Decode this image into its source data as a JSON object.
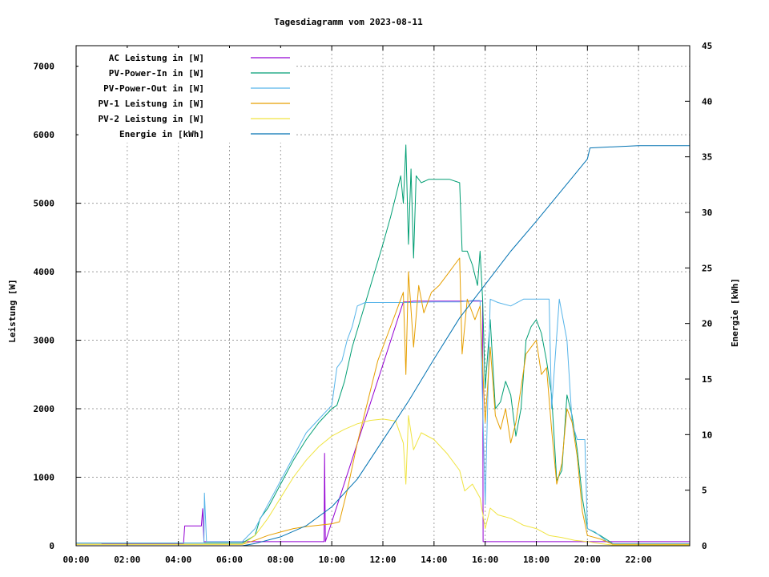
{
  "chart_data": {
    "type": "line",
    "title": "Tagesdiagramm vom 2023-08-11",
    "ylabel": "Leistung [W]",
    "y2label": "Energie [kWh]",
    "xlim": [
      0,
      24
    ],
    "ylim": [
      0,
      7300
    ],
    "y2lim": [
      0,
      45
    ],
    "grid": true,
    "legend_position": "top-left",
    "x_ticks": [
      {
        "v": 0,
        "label": "00:00"
      },
      {
        "v": 2,
        "label": "02:00"
      },
      {
        "v": 4,
        "label": "04:00"
      },
      {
        "v": 6,
        "label": "06:00"
      },
      {
        "v": 8,
        "label": "08:00"
      },
      {
        "v": 10,
        "label": "10:00"
      },
      {
        "v": 12,
        "label": "12:00"
      },
      {
        "v": 14,
        "label": "14:00"
      },
      {
        "v": 16,
        "label": "16:00"
      },
      {
        "v": 18,
        "label": "18:00"
      },
      {
        "v": 20,
        "label": "20:00"
      },
      {
        "v": 22,
        "label": "22:00"
      }
    ],
    "y_ticks": [
      0,
      1000,
      2000,
      3000,
      4000,
      5000,
      6000,
      7000
    ],
    "y2_ticks": [
      0,
      5,
      10,
      15,
      20,
      25,
      30,
      35,
      40,
      45
    ],
    "series": [
      {
        "name": "AC Leistung in [W]",
        "color": "#9400d3",
        "axis": "y1",
        "points": [
          [
            0,
            40
          ],
          [
            1.0,
            40
          ],
          [
            1.01,
            30
          ],
          [
            4.2,
            30
          ],
          [
            4.25,
            290
          ],
          [
            4.9,
            290
          ],
          [
            4.95,
            540
          ],
          [
            5.0,
            60
          ],
          [
            9.7,
            60
          ],
          [
            9.72,
            1350
          ],
          [
            9.75,
            60
          ],
          [
            12.8,
            3560
          ],
          [
            13.0,
            3560
          ],
          [
            13.2,
            3570
          ],
          [
            15.9,
            3570
          ],
          [
            15.92,
            60
          ],
          [
            24,
            60
          ]
        ]
      },
      {
        "name": "PV-Power-In in [W]",
        "color": "#009e73",
        "axis": "y1",
        "points": [
          [
            0,
            40
          ],
          [
            5.0,
            40
          ],
          [
            5.05,
            40
          ],
          [
            6.5,
            40
          ],
          [
            7.0,
            150
          ],
          [
            7.2,
            400
          ],
          [
            7.5,
            550
          ],
          [
            8.0,
            900
          ],
          [
            8.5,
            1250
          ],
          [
            9.0,
            1550
          ],
          [
            9.5,
            1800
          ],
          [
            10.0,
            2000
          ],
          [
            10.2,
            2050
          ],
          [
            10.5,
            2400
          ],
          [
            10.8,
            2900
          ],
          [
            11.2,
            3400
          ],
          [
            11.6,
            3900
          ],
          [
            12.0,
            4400
          ],
          [
            12.3,
            4800
          ],
          [
            12.5,
            5100
          ],
          [
            12.7,
            5400
          ],
          [
            12.8,
            5000
          ],
          [
            12.9,
            5850
          ],
          [
            13.0,
            4400
          ],
          [
            13.1,
            5500
          ],
          [
            13.2,
            4200
          ],
          [
            13.3,
            5400
          ],
          [
            13.5,
            5300
          ],
          [
            13.8,
            5350
          ],
          [
            14.2,
            5350
          ],
          [
            14.6,
            5350
          ],
          [
            15.0,
            5300
          ],
          [
            15.1,
            4300
          ],
          [
            15.3,
            4300
          ],
          [
            15.5,
            4100
          ],
          [
            15.7,
            3800
          ],
          [
            15.8,
            4300
          ],
          [
            15.9,
            3600
          ],
          [
            16.0,
            2300
          ],
          [
            16.2,
            3300
          ],
          [
            16.4,
            2000
          ],
          [
            16.6,
            2100
          ],
          [
            16.8,
            2400
          ],
          [
            17.0,
            2200
          ],
          [
            17.2,
            1600
          ],
          [
            17.4,
            2000
          ],
          [
            17.6,
            3000
          ],
          [
            17.8,
            3200
          ],
          [
            18.0,
            3300
          ],
          [
            18.2,
            3100
          ],
          [
            18.4,
            2700
          ],
          [
            18.6,
            2200
          ],
          [
            18.8,
            950
          ],
          [
            19.0,
            1100
          ],
          [
            19.2,
            2200
          ],
          [
            19.4,
            1900
          ],
          [
            19.6,
            1400
          ],
          [
            19.8,
            700
          ],
          [
            20.0,
            250
          ],
          [
            20.5,
            150
          ],
          [
            21.0,
            30
          ],
          [
            24,
            30
          ]
        ]
      },
      {
        "name": "PV-Power-Out in [W]",
        "color": "#56b4e9",
        "axis": "y1",
        "points": [
          [
            0,
            40
          ],
          [
            5.0,
            40
          ],
          [
            5.02,
            770
          ],
          [
            5.1,
            60
          ],
          [
            6.5,
            60
          ],
          [
            7.0,
            250
          ],
          [
            7.5,
            600
          ],
          [
            8.0,
            950
          ],
          [
            8.5,
            1300
          ],
          [
            9.0,
            1650
          ],
          [
            9.5,
            1850
          ],
          [
            10.0,
            2050
          ],
          [
            10.2,
            2600
          ],
          [
            10.4,
            2700
          ],
          [
            10.6,
            3000
          ],
          [
            10.8,
            3200
          ],
          [
            11.0,
            3500
          ],
          [
            11.3,
            3550
          ],
          [
            12.0,
            3550
          ],
          [
            13.0,
            3550
          ],
          [
            14.0,
            3560
          ],
          [
            15.0,
            3560
          ],
          [
            15.5,
            3580
          ],
          [
            15.8,
            3580
          ],
          [
            16.0,
            600
          ],
          [
            16.2,
            3600
          ],
          [
            16.5,
            3550
          ],
          [
            17.0,
            3500
          ],
          [
            17.5,
            3600
          ],
          [
            18.0,
            3600
          ],
          [
            18.5,
            3600
          ],
          [
            18.6,
            2000
          ],
          [
            18.9,
            3600
          ],
          [
            19.2,
            3000
          ],
          [
            19.4,
            1800
          ],
          [
            19.6,
            1550
          ],
          [
            19.9,
            1550
          ],
          [
            20.0,
            250
          ],
          [
            20.3,
            200
          ],
          [
            20.8,
            50
          ],
          [
            21.0,
            30
          ],
          [
            24,
            30
          ]
        ]
      },
      {
        "name": "PV-1 Leistung in [W]",
        "color": "#e69f00",
        "axis": "y1",
        "points": [
          [
            0,
            20
          ],
          [
            6.5,
            20
          ],
          [
            7.0,
            80
          ],
          [
            7.5,
            150
          ],
          [
            8.0,
            200
          ],
          [
            8.5,
            250
          ],
          [
            9.0,
            280
          ],
          [
            9.5,
            300
          ],
          [
            10.0,
            320
          ],
          [
            10.3,
            350
          ],
          [
            10.6,
            800
          ],
          [
            11.0,
            1500
          ],
          [
            11.4,
            2100
          ],
          [
            11.8,
            2700
          ],
          [
            12.2,
            3100
          ],
          [
            12.5,
            3400
          ],
          [
            12.8,
            3700
          ],
          [
            12.9,
            2500
          ],
          [
            13.0,
            4000
          ],
          [
            13.2,
            2900
          ],
          [
            13.4,
            3800
          ],
          [
            13.6,
            3400
          ],
          [
            13.9,
            3700
          ],
          [
            14.2,
            3800
          ],
          [
            14.5,
            3950
          ],
          [
            14.8,
            4100
          ],
          [
            15.0,
            4200
          ],
          [
            15.1,
            2800
          ],
          [
            15.3,
            3600
          ],
          [
            15.6,
            3300
          ],
          [
            15.8,
            3500
          ],
          [
            16.0,
            1800
          ],
          [
            16.2,
            2900
          ],
          [
            16.4,
            1900
          ],
          [
            16.6,
            1700
          ],
          [
            16.8,
            2000
          ],
          [
            17.0,
            1500
          ],
          [
            17.2,
            1800
          ],
          [
            17.4,
            2300
          ],
          [
            17.6,
            2800
          ],
          [
            17.8,
            2900
          ],
          [
            18.0,
            3000
          ],
          [
            18.2,
            2500
          ],
          [
            18.4,
            2600
          ],
          [
            18.6,
            1700
          ],
          [
            18.8,
            900
          ],
          [
            19.0,
            1200
          ],
          [
            19.2,
            2000
          ],
          [
            19.4,
            1800
          ],
          [
            19.6,
            1300
          ],
          [
            19.8,
            500
          ],
          [
            20.0,
            150
          ],
          [
            20.5,
            100
          ],
          [
            21.0,
            20
          ],
          [
            24,
            20
          ]
        ]
      },
      {
        "name": "PV-2 Leistung in [W]",
        "color": "#f0e442",
        "axis": "y1",
        "points": [
          [
            0,
            20
          ],
          [
            6.5,
            20
          ],
          [
            7.0,
            150
          ],
          [
            7.5,
            400
          ],
          [
            8.0,
            700
          ],
          [
            8.5,
            1000
          ],
          [
            9.0,
            1250
          ],
          [
            9.5,
            1450
          ],
          [
            10.0,
            1600
          ],
          [
            10.5,
            1700
          ],
          [
            11.0,
            1780
          ],
          [
            11.5,
            1830
          ],
          [
            12.0,
            1850
          ],
          [
            12.5,
            1820
          ],
          [
            12.8,
            1500
          ],
          [
            12.9,
            900
          ],
          [
            13.0,
            1900
          ],
          [
            13.2,
            1400
          ],
          [
            13.5,
            1650
          ],
          [
            14.0,
            1550
          ],
          [
            14.5,
            1350
          ],
          [
            15.0,
            1100
          ],
          [
            15.2,
            800
          ],
          [
            15.5,
            900
          ],
          [
            15.8,
            700
          ],
          [
            16.0,
            250
          ],
          [
            16.2,
            550
          ],
          [
            16.5,
            450
          ],
          [
            17.0,
            400
          ],
          [
            17.5,
            300
          ],
          [
            18.0,
            250
          ],
          [
            18.5,
            150
          ],
          [
            19.0,
            120
          ],
          [
            19.5,
            80
          ],
          [
            20.0,
            60
          ],
          [
            20.5,
            30
          ],
          [
            21.0,
            10
          ],
          [
            24,
            10
          ]
        ]
      },
      {
        "name": "Energie in [kWh]",
        "color": "#0072b2",
        "axis": "y2",
        "points": [
          [
            0,
            0
          ],
          [
            6.5,
            0
          ],
          [
            7.0,
            0.2
          ],
          [
            8.0,
            0.8
          ],
          [
            9.0,
            1.8
          ],
          [
            10.0,
            3.5
          ],
          [
            11.0,
            6.0
          ],
          [
            12.0,
            9.5
          ],
          [
            13.0,
            13.0
          ],
          [
            14.0,
            16.8
          ],
          [
            15.0,
            20.5
          ],
          [
            16.0,
            23.5
          ],
          [
            17.0,
            26.5
          ],
          [
            18.0,
            29.2
          ],
          [
            19.0,
            32.0
          ],
          [
            20.0,
            34.8
          ],
          [
            20.1,
            35.8
          ],
          [
            21.0,
            35.9
          ],
          [
            22.0,
            36.0
          ],
          [
            24,
            36.0
          ]
        ]
      }
    ]
  }
}
